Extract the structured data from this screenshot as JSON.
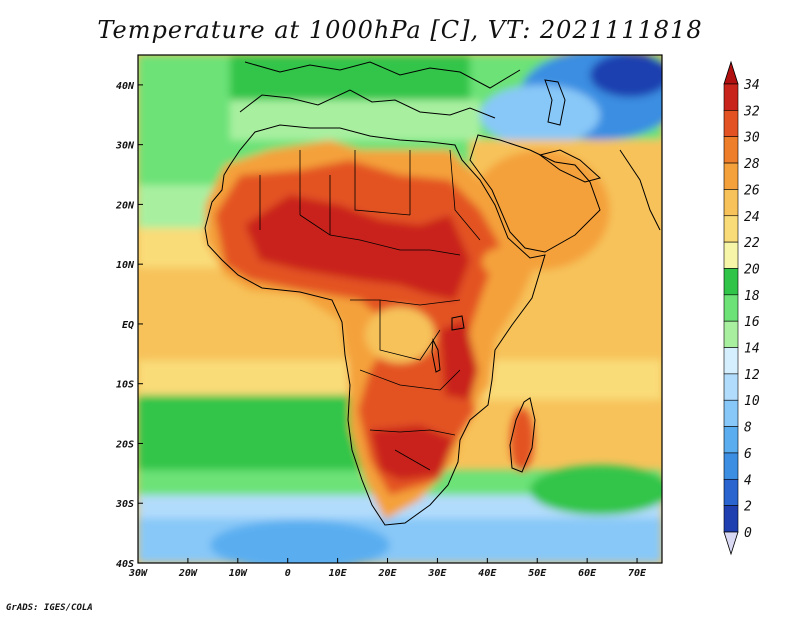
{
  "title": "Temperature at 1000hPa [C], VT: 2021111818",
  "credit": "GrADS: IGES/COLA",
  "map": {
    "lon_range": [
      -30,
      75
    ],
    "lat_range": [
      -40,
      45
    ],
    "lon_ticks": [
      "30W",
      "20W",
      "10W",
      "0",
      "10E",
      "20E",
      "30E",
      "40E",
      "50E",
      "60E",
      "70E"
    ],
    "lat_ticks": [
      "40N",
      "30N",
      "20N",
      "10N",
      "EQ",
      "10S",
      "20S",
      "30S",
      "40S"
    ]
  },
  "colorbar": {
    "labels": [
      "34",
      "32",
      "30",
      "28",
      "26",
      "24",
      "22",
      "20",
      "18",
      "16",
      "14",
      "12",
      "10",
      "8",
      "6",
      "4",
      "2",
      "0"
    ],
    "colors": [
      "#1a1c8a",
      "#1f3fb0",
      "#2a65cf",
      "#3b8ee2",
      "#5aaef0",
      "#88c8f8",
      "#b2dcfb",
      "#d6efff",
      "#a8f0a0",
      "#6ce277",
      "#30c548",
      "#f7f5a8",
      "#f9dc78",
      "#f7c25a",
      "#f4a13b",
      "#ee7e2a",
      "#e35223",
      "#c9241b",
      "#b01010"
    ]
  }
}
